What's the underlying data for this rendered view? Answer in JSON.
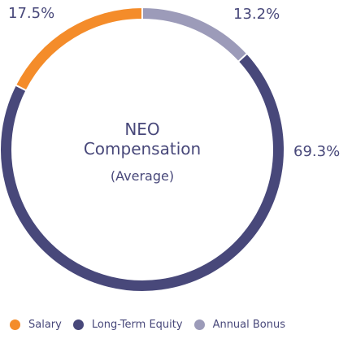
{
  "chart_data": {
    "type": "pie",
    "title": "NEO",
    "subtitle": "Compensation",
    "note": "(Average)",
    "categories": [
      "Salary",
      "Long-Term Equity",
      "Annual Bonus"
    ],
    "values": [
      17.5,
      69.3,
      13.2
    ],
    "labels": [
      "17.5%",
      "69.3%",
      "13.2%"
    ],
    "colors": [
      "#f48c2a",
      "#48487a",
      "#9c9bb9"
    ],
    "donut": true,
    "legend_position": "bottom"
  }
}
